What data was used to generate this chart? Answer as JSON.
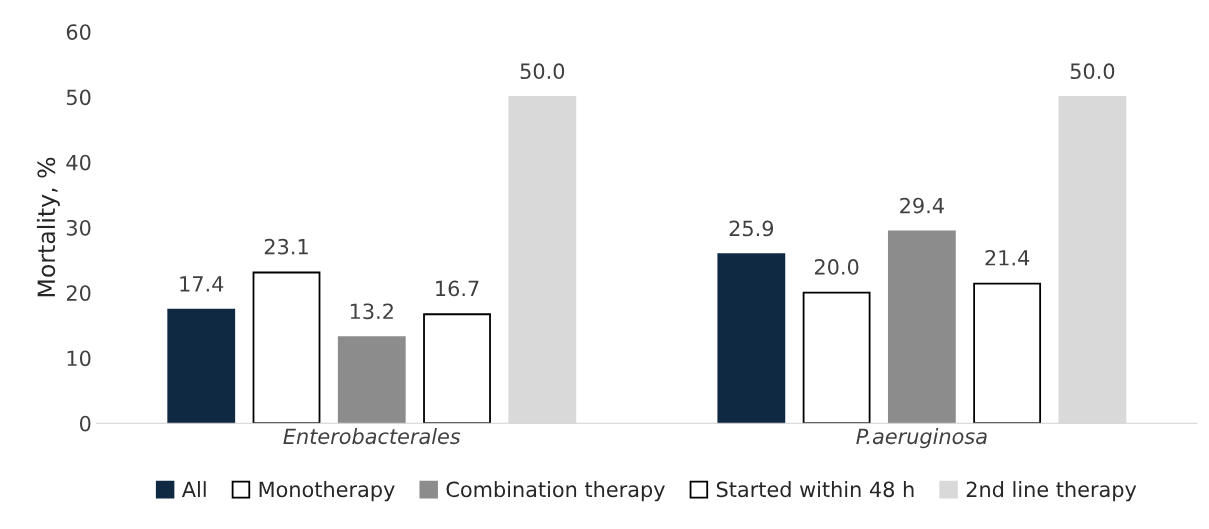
{
  "chart_data": {
    "type": "bar",
    "ylabel": "Mortality, %",
    "categories": [
      "Enterobacterales",
      "P.aeruginosa"
    ],
    "series": [
      {
        "name": "All",
        "color": "#0f2942",
        "values": [
          17.4,
          25.9
        ],
        "value_labels": [
          "17.4",
          "25.9"
        ]
      },
      {
        "name": "Monotherapy",
        "color": "#ffffff",
        "values": [
          23.1,
          20.0
        ],
        "value_labels": [
          "23.1",
          "20.0"
        ]
      },
      {
        "name": "Combination therapy",
        "color": "#8c8c8c",
        "values": [
          13.2,
          29.4
        ],
        "value_labels": [
          "13.2",
          "29.4"
        ]
      },
      {
        "name": "Started within 48 h",
        "color": "#ffffff",
        "values": [
          16.7,
          21.4
        ],
        "value_labels": [
          "16.7",
          "21.4"
        ]
      },
      {
        "name": "2nd line therapy",
        "color": "#d9d9d9",
        "values": [
          50.0,
          50.0
        ],
        "value_labels": [
          "50.0",
          "50.0"
        ]
      }
    ],
    "ylim": [
      0,
      60
    ],
    "yticks": [
      0,
      10,
      20,
      30,
      40,
      50,
      60
    ],
    "grid": false,
    "legend": "bottom"
  }
}
